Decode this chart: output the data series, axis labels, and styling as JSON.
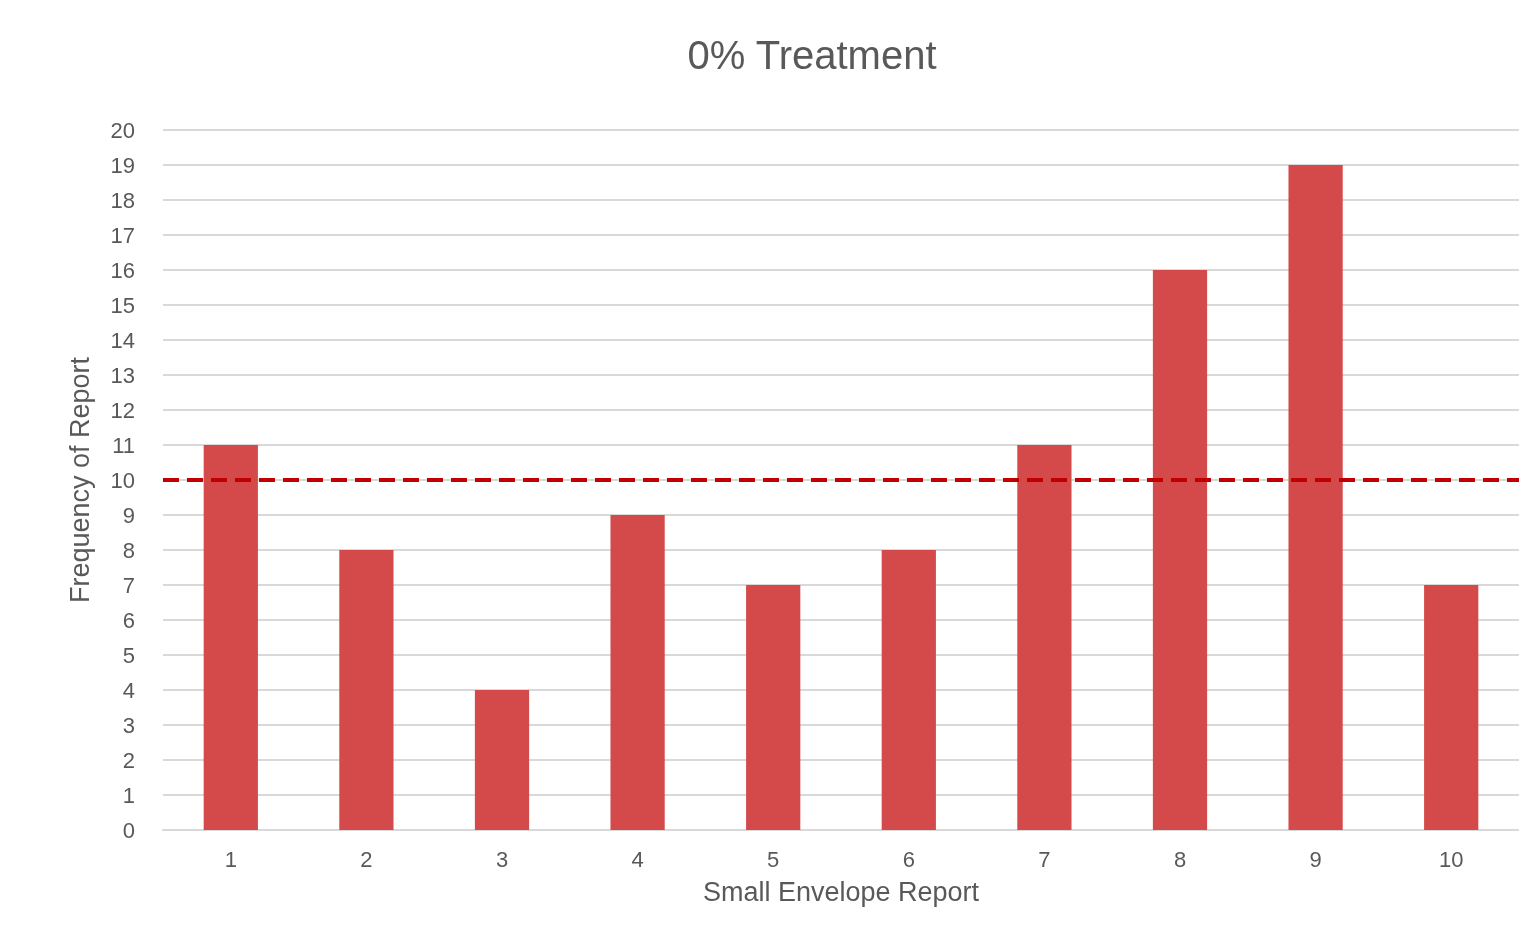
{
  "chart_data": {
    "type": "bar",
    "title": "0% Treatment",
    "xlabel": "Small Envelope Report",
    "ylabel": "Frequency of Report",
    "categories": [
      "1",
      "2",
      "3",
      "4",
      "5",
      "6",
      "7",
      "8",
      "9",
      "10"
    ],
    "values": [
      11,
      8,
      4,
      9,
      7,
      8,
      11,
      16,
      19,
      7
    ],
    "color": "#d44a4a",
    "ylim": [
      0,
      20
    ],
    "yticks": [
      0,
      1,
      2,
      3,
      4,
      5,
      6,
      7,
      8,
      9,
      10,
      11,
      12,
      13,
      14,
      15,
      16,
      17,
      18,
      19,
      20
    ],
    "grid": "y",
    "ref_lines": [
      {
        "axis": "y",
        "value": 10,
        "color": "#c00000",
        "line_style": "dashed"
      }
    ]
  }
}
